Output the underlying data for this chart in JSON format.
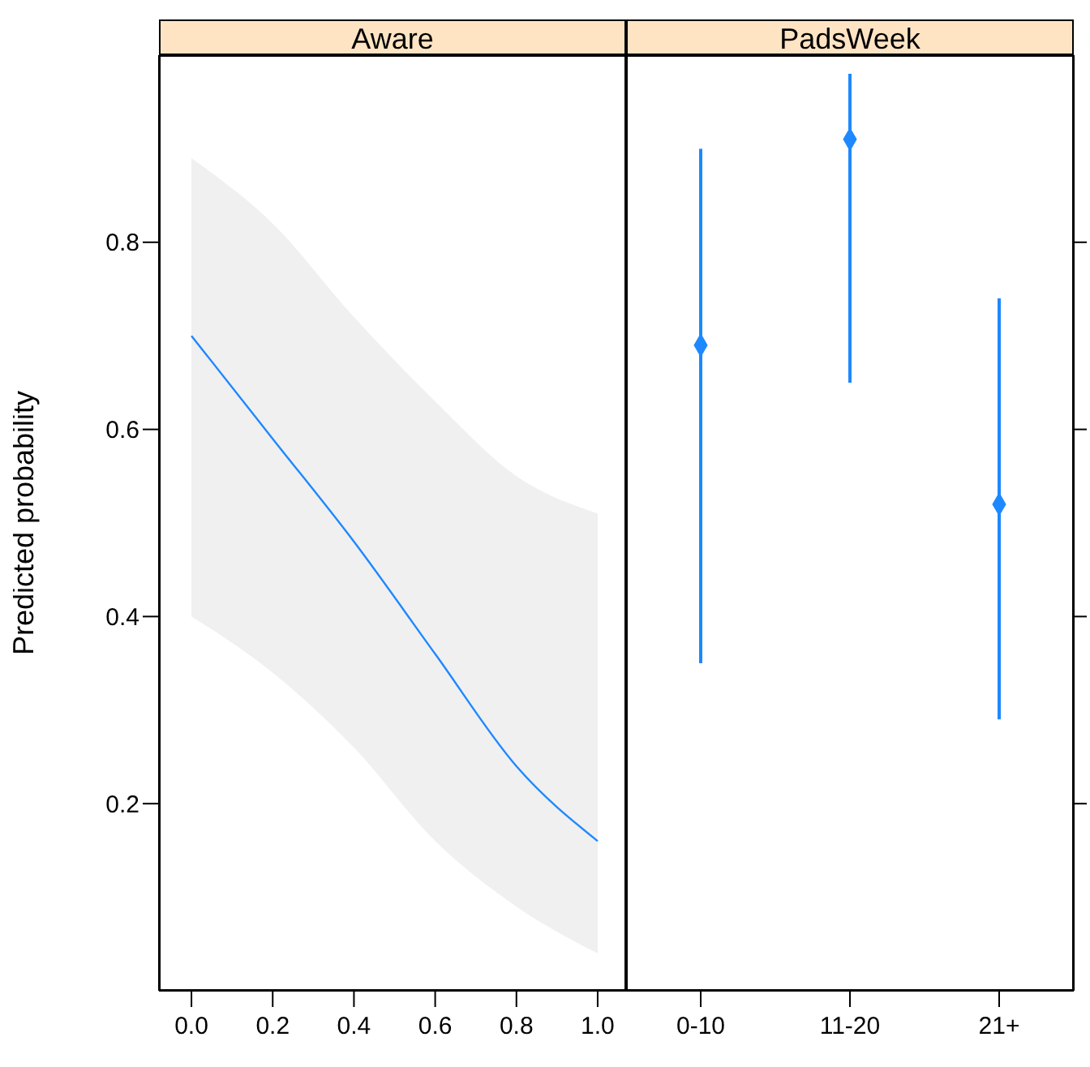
{
  "chart_data": [
    {
      "type": "line",
      "title": "Aware",
      "ylabel": "Predicted probability",
      "x": [
        0,
        0.2,
        0.4,
        0.6,
        0.8,
        1
      ],
      "series": [
        {
          "color": "#1e88ff",
          "values": [
            0.7,
            0.59,
            0.48,
            0.36,
            0.24,
            0.16
          ],
          "lower": [
            0.4,
            0.34,
            0.26,
            0.16,
            0.09,
            0.04
          ],
          "upper": [
            0.89,
            0.82,
            0.72,
            0.63,
            0.55,
            0.51
          ]
        }
      ],
      "xlim": [
        -0.08,
        1.07
      ],
      "xticks": [
        {
          "value": 0,
          "label": "0.0"
        },
        0.2,
        0.4,
        0.6,
        0.8,
        {
          "value": 1,
          "label": "1.0"
        }
      ],
      "ylim": [
        0,
        1
      ],
      "yticks": [
        0.2,
        0.4,
        0.6,
        0.8
      ],
      "grid": false,
      "legend": false,
      "marker": "none",
      "line_style": "solid"
    },
    {
      "type": "scatter",
      "title": "PadsWeek",
      "categories": [
        "0-10",
        "11-20",
        "21+"
      ],
      "series": [
        {
          "color": "#1e88ff",
          "values": [
            0.69,
            0.91,
            0.52
          ],
          "errors": [
            [
              0.35,
              0.9
            ],
            [
              0.65,
              0.98
            ],
            [
              0.29,
              0.74
            ]
          ]
        }
      ],
      "ylim": [
        0,
        1
      ],
      "yticks": [
        0.2,
        0.4,
        0.6,
        0.8
      ],
      "tick_labels": "x",
      "grid": false,
      "legend": false,
      "marker": "diamond"
    }
  ]
}
